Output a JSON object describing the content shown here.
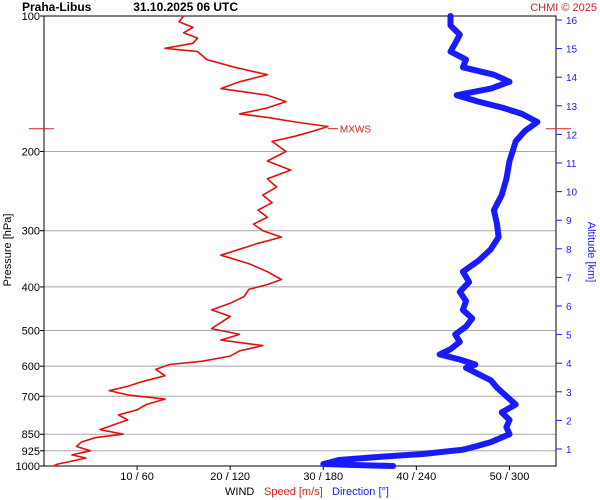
{
  "header": {
    "station": "Praha-Libus",
    "datetime": "31.10.2025 06 UTC",
    "credit": "CHMI © 2025"
  },
  "chart_data": {
    "type": "line",
    "ylabel": "Pressure [hPa]",
    "y2label": "Altitude [km]",
    "xlabel_prefix": "WIND",
    "speed_label": "Speed [m/s]",
    "direction_label": "Direction [°]",
    "pressure_ticks": [
      100,
      200,
      300,
      400,
      500,
      600,
      700,
      850,
      925,
      1000
    ],
    "altitude_ticks_km": [
      1,
      2,
      3,
      4,
      5,
      6,
      7,
      8,
      9,
      10,
      11,
      12,
      13,
      14,
      15,
      16
    ],
    "x_ticks": [
      "10 / 60",
      "20 / 120",
      "30 / 180",
      "40 / 240",
      "50 / 300"
    ],
    "speed_range_ms": [
      0,
      55
    ],
    "direction_range_deg": [
      0,
      330
    ],
    "pressure_range_hpa": [
      100,
      1000
    ],
    "grid": "horizontal",
    "maxwind": {
      "label": "MXWS",
      "pressure_hpa": 178,
      "speed_ms": 30.5
    },
    "series": [
      {
        "name": "Speed [m/s]",
        "color": "#e01010",
        "points_p_value": [
          [
            1000,
            1
          ],
          [
            990,
            1.5
          ],
          [
            975,
            3
          ],
          [
            960,
            4.5
          ],
          [
            945,
            3
          ],
          [
            925,
            5
          ],
          [
            905,
            3.5
          ],
          [
            885,
            4
          ],
          [
            865,
            5.5
          ],
          [
            850,
            8.5
          ],
          [
            830,
            6
          ],
          [
            810,
            7.5
          ],
          [
            790,
            9
          ],
          [
            770,
            8
          ],
          [
            750,
            10
          ],
          [
            730,
            11
          ],
          [
            710,
            13
          ],
          [
            695,
            9
          ],
          [
            680,
            7
          ],
          [
            665,
            9
          ],
          [
            650,
            10.5
          ],
          [
            630,
            13
          ],
          [
            610,
            12
          ],
          [
            595,
            13.5
          ],
          [
            585,
            17
          ],
          [
            570,
            20
          ],
          [
            555,
            21
          ],
          [
            540,
            23.5
          ],
          [
            525,
            19
          ],
          [
            510,
            21
          ],
          [
            495,
            18
          ],
          [
            480,
            19
          ],
          [
            465,
            20
          ],
          [
            450,
            18
          ],
          [
            435,
            20
          ],
          [
            420,
            21.5
          ],
          [
            405,
            22
          ],
          [
            395,
            24
          ],
          [
            385,
            25.5
          ],
          [
            370,
            24
          ],
          [
            355,
            22
          ],
          [
            340,
            19
          ],
          [
            330,
            21
          ],
          [
            320,
            23
          ],
          [
            310,
            25.5
          ],
          [
            300,
            23.5
          ],
          [
            290,
            22.5
          ],
          [
            280,
            24
          ],
          [
            270,
            23
          ],
          [
            260,
            24.5
          ],
          [
            250,
            23.5
          ],
          [
            240,
            25
          ],
          [
            230,
            24
          ],
          [
            220,
            26.5
          ],
          [
            210,
            24
          ],
          [
            200,
            26
          ],
          [
            190,
            24.5
          ],
          [
            185,
            27
          ],
          [
            180,
            29
          ],
          [
            176,
            30.5
          ],
          [
            172,
            27
          ],
          [
            168,
            24
          ],
          [
            165,
            21
          ],
          [
            160,
            24
          ],
          [
            155,
            26
          ],
          [
            150,
            24
          ],
          [
            145,
            19
          ],
          [
            140,
            21
          ],
          [
            135,
            24
          ],
          [
            130,
            20.5
          ],
          [
            125,
            17.5
          ],
          [
            120,
            16.5
          ],
          [
            118,
            13
          ],
          [
            115,
            16
          ],
          [
            112,
            16.5
          ],
          [
            109,
            15
          ],
          [
            106,
            16
          ],
          [
            103,
            14.5
          ],
          [
            100,
            15
          ]
        ]
      },
      {
        "name": "Direction [°]",
        "color": "#1a1aff",
        "points_p_value": [
          [
            1000,
            225
          ],
          [
            995,
            200
          ],
          [
            990,
            180
          ],
          [
            982,
            184
          ],
          [
            970,
            190
          ],
          [
            955,
            215
          ],
          [
            940,
            245
          ],
          [
            920,
            270
          ],
          [
            905,
            278
          ],
          [
            885,
            288
          ],
          [
            850,
            300
          ],
          [
            820,
            298
          ],
          [
            790,
            300
          ],
          [
            760,
            295
          ],
          [
            730,
            304
          ],
          [
            700,
            298
          ],
          [
            670,
            292
          ],
          [
            645,
            288
          ],
          [
            625,
            280
          ],
          [
            605,
            272
          ],
          [
            595,
            278
          ],
          [
            580,
            268
          ],
          [
            565,
            255
          ],
          [
            550,
            262
          ],
          [
            530,
            268
          ],
          [
            510,
            265
          ],
          [
            490,
            272
          ],
          [
            470,
            276
          ],
          [
            450,
            270
          ],
          [
            430,
            272
          ],
          [
            410,
            268
          ],
          [
            390,
            274
          ],
          [
            370,
            270
          ],
          [
            350,
            280
          ],
          [
            330,
            288
          ],
          [
            310,
            293
          ],
          [
            290,
            292
          ],
          [
            270,
            290
          ],
          [
            250,
            295
          ],
          [
            230,
            298
          ],
          [
            210,
            300
          ],
          [
            200,
            302
          ],
          [
            190,
            304
          ],
          [
            180,
            310
          ],
          [
            172,
            318
          ],
          [
            165,
            308
          ],
          [
            160,
            296
          ],
          [
            155,
            280
          ],
          [
            150,
            266
          ],
          [
            145,
            288
          ],
          [
            140,
            300
          ],
          [
            135,
            290
          ],
          [
            130,
            270
          ],
          [
            125,
            272
          ],
          [
            120,
            262
          ],
          [
            115,
            265
          ],
          [
            110,
            268
          ],
          [
            105,
            262
          ],
          [
            100,
            262
          ]
        ]
      }
    ]
  }
}
